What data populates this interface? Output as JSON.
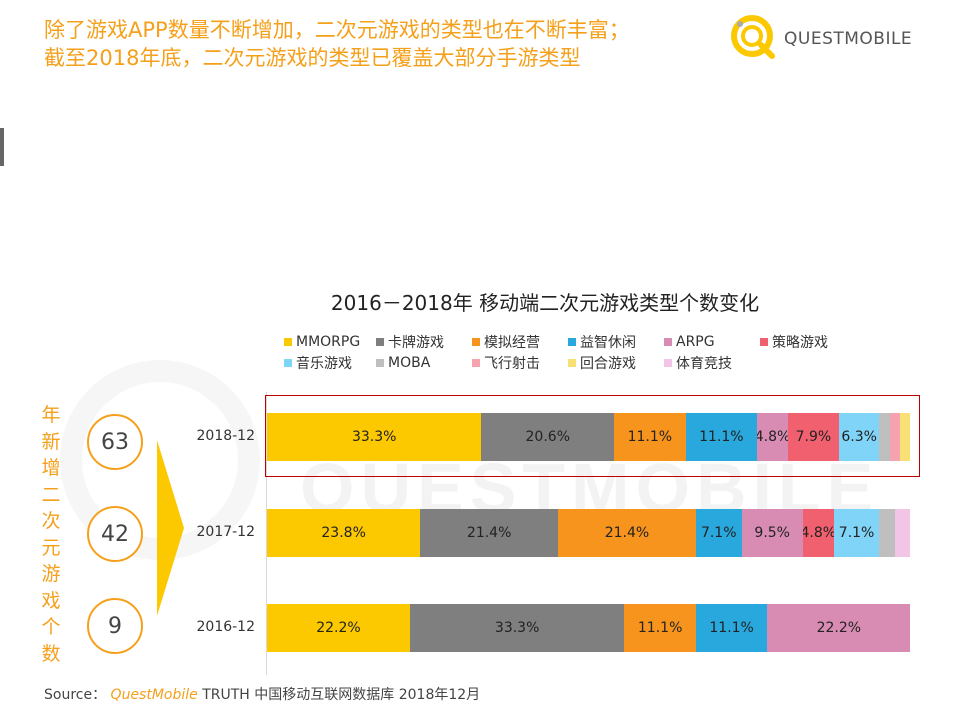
{
  "header": {
    "title_line1": "除了游戏APP数量不断增加，二次元游戏的类型也在不断丰富；",
    "title_line2": "截至2018年底，二次元游戏的类型已覆盖大部分手游类型"
  },
  "logo": {
    "text": "QUESTMOBILE",
    "icon": "questmobile-logo-icon"
  },
  "watermark": "QUESTMOBILE",
  "side_label": "年新增二次元游戏个数",
  "counts": [
    {
      "year": "2018-12",
      "value": "63"
    },
    {
      "year": "2017-12",
      "value": "42"
    },
    {
      "year": "2016-12",
      "value": "9"
    }
  ],
  "source": {
    "prefix": "Source：",
    "brand": "QuestMobile",
    "rest": " TRUTH 中国移动互联网数据库 2018年12月"
  },
  "chart_data": {
    "type": "bar",
    "orientation": "horizontal",
    "stacked": true,
    "title": "2016－2018年 移动端二次元游戏类型个数变化",
    "categories": [
      "2018-12",
      "2017-12",
      "2016-12"
    ],
    "unit": "%",
    "xlim": [
      0,
      100
    ],
    "legend_position": "top",
    "series": [
      {
        "name": "MMORPG",
        "color": "#fcc800",
        "values": [
          33.3,
          23.8,
          22.2
        ],
        "labels": [
          "33.3%",
          "23.8%",
          "22.2%"
        ]
      },
      {
        "name": "卡牌游戏",
        "color": "#7f7f7f",
        "values": [
          20.6,
          21.4,
          33.3
        ],
        "labels": [
          "20.6%",
          "21.4%",
          "33.3%"
        ]
      },
      {
        "name": "模拟经营",
        "color": "#f7941d",
        "values": [
          11.1,
          21.4,
          11.1
        ],
        "labels": [
          "11.1%",
          "21.4%",
          "11.1%"
        ]
      },
      {
        "name": "益智休闲",
        "color": "#29a8de",
        "values": [
          11.1,
          7.1,
          11.1
        ],
        "labels": [
          "11.1%",
          "7.1%",
          "11.1%"
        ]
      },
      {
        "name": "ARPG",
        "color": "#d98cb3",
        "values": [
          4.8,
          9.5,
          22.2
        ],
        "labels": [
          "4.8%",
          "9.5%",
          "22.2%"
        ]
      },
      {
        "name": "策略游戏",
        "color": "#f0606e",
        "values": [
          7.9,
          4.8,
          0
        ],
        "labels": [
          "7.9%",
          "4.8%",
          ""
        ]
      },
      {
        "name": "音乐游戏",
        "color": "#7fd4f7",
        "values": [
          6.3,
          7.1,
          0
        ],
        "labels": [
          "6.3%",
          "7.1%",
          ""
        ]
      },
      {
        "name": "MOBA",
        "color": "#bfbfbf",
        "values": [
          1.6,
          2.4,
          0
        ],
        "labels": [
          "",
          "",
          ""
        ]
      },
      {
        "name": "飞行射击",
        "color": "#f6a3b0",
        "values": [
          1.6,
          0,
          0
        ],
        "labels": [
          "",
          "",
          ""
        ]
      },
      {
        "name": "回合游戏",
        "color": "#f9e076",
        "values": [
          1.6,
          0,
          0
        ],
        "labels": [
          "",
          "",
          ""
        ]
      },
      {
        "name": "体育竞技",
        "color": "#f2c4e6",
        "values": [
          0,
          2.4,
          0
        ],
        "labels": [
          "",
          "",
          ""
        ]
      }
    ]
  }
}
